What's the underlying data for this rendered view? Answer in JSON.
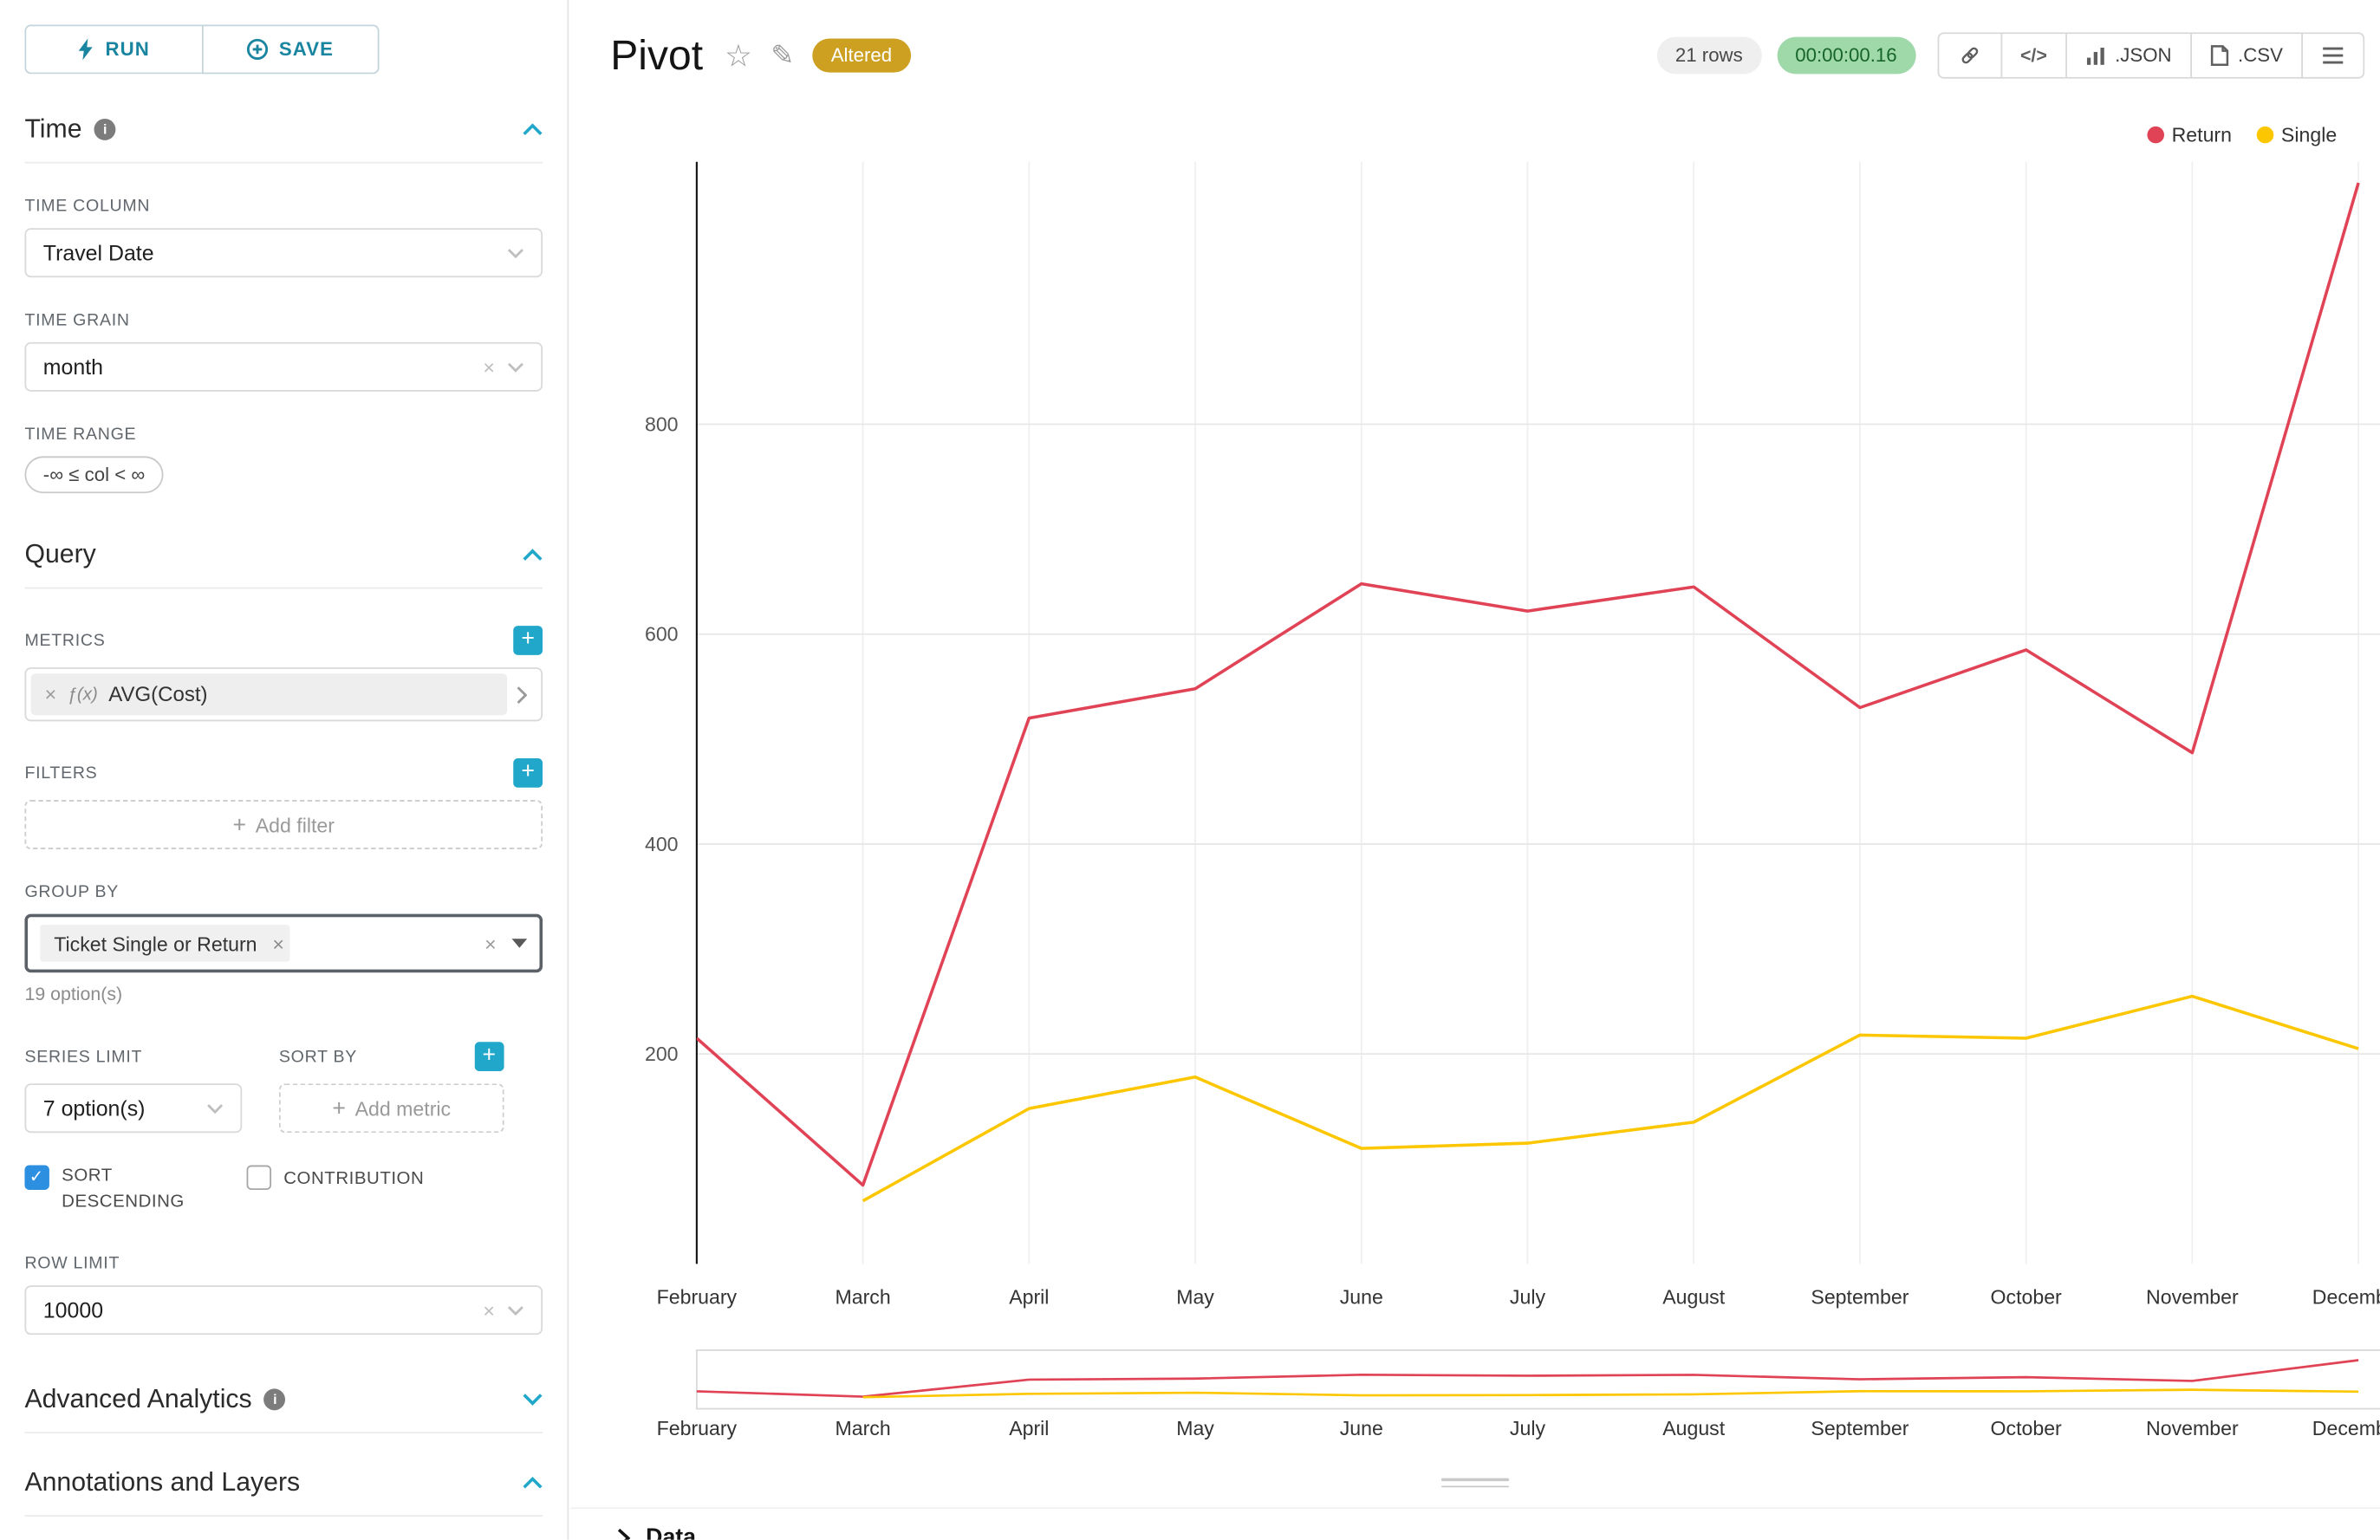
{
  "toolbar": {
    "run": "RUN",
    "save": "SAVE"
  },
  "icons": {
    "close": "×",
    "plus": "+",
    "star": "☆",
    "edit": "✎",
    "info": "i",
    "code_glyph": "</>"
  },
  "sidebar": {
    "time": {
      "title": "Time",
      "time_column_label": "TIME COLUMN",
      "time_column_value": "Travel Date",
      "time_grain_label": "TIME GRAIN",
      "time_grain_value": "month",
      "time_range_label": "TIME RANGE",
      "time_range_value": "-∞ ≤ col < ∞"
    },
    "query": {
      "title": "Query",
      "metrics_label": "METRICS",
      "metric_fx": "ƒ(x)",
      "metric_value": "AVG(Cost)",
      "filters_label": "FILTERS",
      "add_filter_placeholder": "Add filter",
      "group_by_label": "GROUP BY",
      "group_by_token": "Ticket Single or Return",
      "group_by_hint": "19 option(s)",
      "series_limit_label": "SERIES LIMIT",
      "series_limit_value": "7 option(s)",
      "sort_by_label": "SORT BY",
      "add_metric_placeholder": "Add metric",
      "sort_descending_label": "SORT DESCENDING",
      "sort_descending_checked": true,
      "contribution_label": "CONTRIBUTION",
      "contribution_checked": false,
      "row_limit_label": "ROW LIMIT",
      "row_limit_value": "10000"
    },
    "advanced_analytics_title": "Advanced Analytics",
    "annotations_title": "Annotations and Layers"
  },
  "header": {
    "title": "Pivot",
    "badge": "Altered",
    "row_count": "21 rows",
    "timer": "00:00:00.16",
    "export_json": ".JSON",
    "export_csv": ".CSV"
  },
  "footer": {
    "data_label": "Data"
  },
  "chart_data": {
    "type": "line",
    "x": [
      "February",
      "March",
      "April",
      "May",
      "June",
      "July",
      "August",
      "September",
      "October",
      "November",
      "December"
    ],
    "series": [
      {
        "name": "Return",
        "color": "#E04355",
        "values": [
          215,
          75,
          520,
          548,
          648,
          622,
          645,
          530,
          585,
          487,
          1030
        ]
      },
      {
        "name": "Single",
        "color": "#FCC700",
        "values": [
          null,
          60,
          148,
          178,
          110,
          115,
          135,
          218,
          215,
          255,
          205
        ]
      }
    ],
    "yticks": [
      200,
      400,
      600,
      800
    ],
    "ylim": [
      0,
      1050
    ],
    "ylabel": "",
    "xlabel": "",
    "grid": true,
    "legend_position": "top-right",
    "has_range_selector_minichart": true
  }
}
